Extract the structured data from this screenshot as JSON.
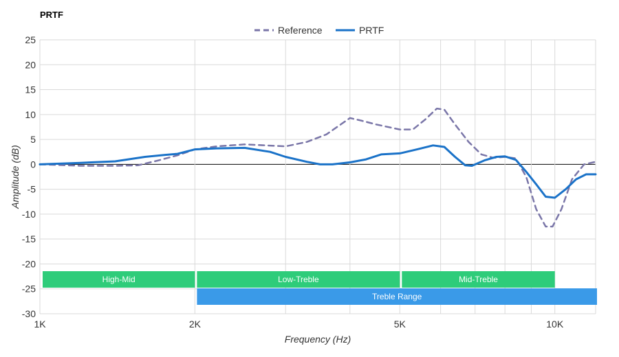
{
  "title": "PRTF",
  "chart_data": {
    "type": "line",
    "title": "PRTF",
    "xlabel": "Frequency (Hz)",
    "ylabel": "Amplitude (dB)",
    "x_scale": "log",
    "xlim": [
      1000,
      12000
    ],
    "ylim": [
      -30,
      25
    ],
    "y_ticks": [
      25,
      20,
      15,
      10,
      5,
      0,
      -5,
      -10,
      -15,
      -20,
      -25,
      -30
    ],
    "x_tick_labels": [
      {
        "value": 1000,
        "label": "1K"
      },
      {
        "value": 2000,
        "label": "2K"
      },
      {
        "value": 5000,
        "label": "5K"
      },
      {
        "value": 10000,
        "label": "10K"
      }
    ],
    "x_gridlines": [
      1000,
      2000,
      3000,
      4000,
      5000,
      6000,
      7000,
      8000,
      9000,
      10000,
      12000
    ],
    "grid": true,
    "legend_position": "top-center",
    "series": [
      {
        "name": "Reference",
        "color": "#7a76a8",
        "dashed": true,
        "points": [
          [
            1000,
            0
          ],
          [
            1200,
            -0.3
          ],
          [
            1400,
            -0.3
          ],
          [
            1550,
            -0.2
          ],
          [
            1700,
            0.8
          ],
          [
            1850,
            1.8
          ],
          [
            2000,
            3
          ],
          [
            2200,
            3.6
          ],
          [
            2500,
            4
          ],
          [
            2750,
            3.8
          ],
          [
            3000,
            3.6
          ],
          [
            3300,
            4.5
          ],
          [
            3600,
            6
          ],
          [
            3900,
            8.5
          ],
          [
            4000,
            9.3
          ],
          [
            4200,
            8.8
          ],
          [
            4500,
            8
          ],
          [
            5000,
            7
          ],
          [
            5300,
            7
          ],
          [
            5600,
            9
          ],
          [
            5900,
            11.2
          ],
          [
            6100,
            11
          ],
          [
            6400,
            8
          ],
          [
            6800,
            4.5
          ],
          [
            7200,
            2
          ],
          [
            7600,
            1.3
          ],
          [
            8000,
            1.5
          ],
          [
            8400,
            1.2
          ],
          [
            8800,
            -2.5
          ],
          [
            9200,
            -9
          ],
          [
            9600,
            -12.5
          ],
          [
            9900,
            -12.5
          ],
          [
            10300,
            -9
          ],
          [
            10800,
            -3
          ],
          [
            11400,
            0
          ],
          [
            12000,
            0.5
          ]
        ]
      },
      {
        "name": "PRTF",
        "color": "#1a72c8",
        "dashed": false,
        "points": [
          [
            1000,
            0
          ],
          [
            1200,
            0.3
          ],
          [
            1400,
            0.6
          ],
          [
            1600,
            1.5
          ],
          [
            1750,
            1.9
          ],
          [
            1850,
            2.1
          ],
          [
            2000,
            3
          ],
          [
            2200,
            3.2
          ],
          [
            2500,
            3.3
          ],
          [
            2800,
            2.5
          ],
          [
            3000,
            1.5
          ],
          [
            3300,
            0.5
          ],
          [
            3500,
            0
          ],
          [
            3700,
            0
          ],
          [
            4000,
            0.4
          ],
          [
            4300,
            1
          ],
          [
            4600,
            2
          ],
          [
            5000,
            2.2
          ],
          [
            5400,
            3
          ],
          [
            5800,
            3.8
          ],
          [
            6100,
            3.5
          ],
          [
            6400,
            1.5
          ],
          [
            6700,
            -0.2
          ],
          [
            6900,
            -0.3
          ],
          [
            7300,
            0.8
          ],
          [
            7700,
            1.5
          ],
          [
            8000,
            1.6
          ],
          [
            8400,
            0.9
          ],
          [
            8800,
            -1.5
          ],
          [
            9200,
            -4
          ],
          [
            9600,
            -6.5
          ],
          [
            10000,
            -6.7
          ],
          [
            10500,
            -5
          ],
          [
            11000,
            -3
          ],
          [
            11500,
            -2
          ],
          [
            12000,
            -2
          ]
        ]
      }
    ],
    "bands": [
      {
        "label": "High-Mid",
        "from": 1000,
        "to": 2000,
        "color": "#2ecc7a",
        "row": 0
      },
      {
        "label": "Low-Treble",
        "from": 2000,
        "to": 5000,
        "color": "#2ecc7a",
        "row": 0
      },
      {
        "label": "Mid-Treble",
        "from": 5000,
        "to": 10000,
        "color": "#2ecc7a",
        "row": 0
      },
      {
        "label": "Treble Range",
        "from": 2000,
        "to": 12000,
        "color": "#3a9ae8",
        "row": 1
      }
    ]
  }
}
